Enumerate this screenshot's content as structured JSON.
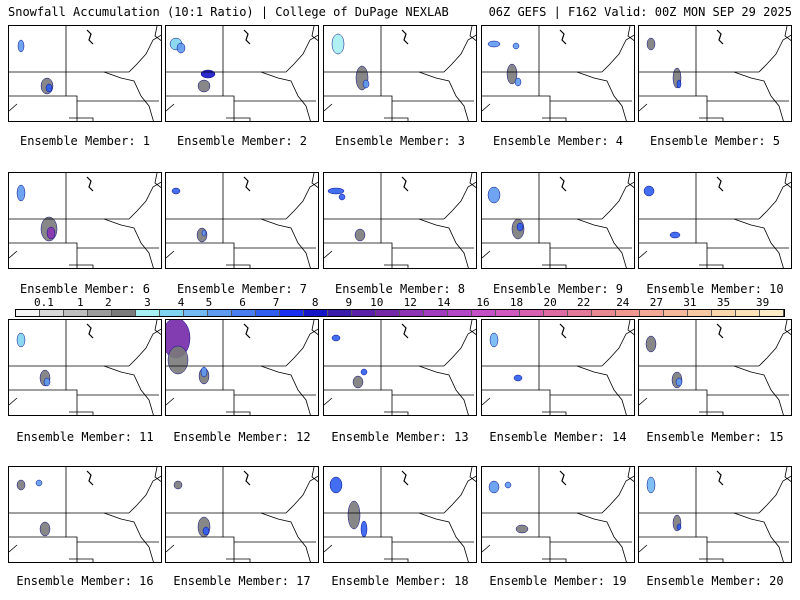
{
  "header": {
    "left": "Snowfall Accumulation (10:1 Ratio) | College of DuPage NEXLAB",
    "right": "06Z GEFS | F162 Valid: 00Z MON SEP 29 2025"
  },
  "colorbar": {
    "labels": [
      "0.1",
      "1",
      "2",
      "3",
      "4",
      "5",
      "6",
      "7",
      "8",
      "9",
      "10",
      "12",
      "14",
      "16",
      "18",
      "20",
      "22",
      "24",
      "27",
      "31",
      "35",
      "39"
    ],
    "colors": [
      "#f4f4f4",
      "#d9d9d9",
      "#bdbdbd",
      "#9c9c9c",
      "#7a7a7a",
      "#a6f0f2",
      "#7fd4f0",
      "#72b8f2",
      "#5e9af0",
      "#4a7df0",
      "#2f5ef0",
      "#1a2ef2",
      "#1414c8",
      "#3a1aa8",
      "#5a20a8",
      "#7428a8",
      "#8c34b4",
      "#a23cbe",
      "#b446c8",
      "#c450c6",
      "#d058be",
      "#d860b0",
      "#de6aa4",
      "#e2789a",
      "#e88890",
      "#ee9890",
      "#f2a894",
      "#f5b89a",
      "#f8c8a2",
      "#fad6ac",
      "#fce2b8",
      "#fdecc6"
    ]
  },
  "members": [
    {
      "label": "Ensemble Member: 1"
    },
    {
      "label": "Ensemble Member: 2"
    },
    {
      "label": "Ensemble Member: 3"
    },
    {
      "label": "Ensemble Member: 4"
    },
    {
      "label": "Ensemble Member: 5"
    },
    {
      "label": "Ensemble Member: 6"
    },
    {
      "label": "Ensemble Member: 7"
    },
    {
      "label": "Ensemble Member: 8"
    },
    {
      "label": "Ensemble Member: 9"
    },
    {
      "label": "Ensemble Member: 10"
    },
    {
      "label": "Ensemble Member: 11"
    },
    {
      "label": "Ensemble Member: 12"
    },
    {
      "label": "Ensemble Member: 13"
    },
    {
      "label": "Ensemble Member: 14"
    },
    {
      "label": "Ensemble Member: 15"
    },
    {
      "label": "Ensemble Member: 16"
    },
    {
      "label": "Ensemble Member: 17"
    },
    {
      "label": "Ensemble Member: 18"
    },
    {
      "label": "Ensemble Member: 19"
    },
    {
      "label": "Ensemble Member: 20"
    }
  ]
}
